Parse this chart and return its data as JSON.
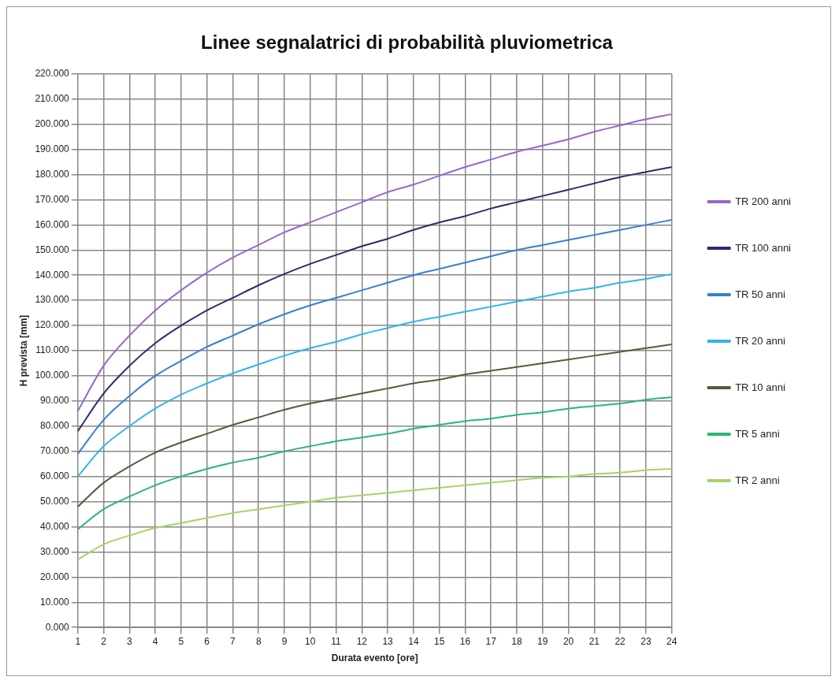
{
  "chart_data": {
    "type": "line",
    "title": "Linee segnalatrici di probabilità pluviometrica",
    "xlabel": "Durata evento [ore]",
    "ylabel": "H prevista [mm]",
    "x": [
      1,
      2,
      3,
      4,
      5,
      6,
      7,
      8,
      9,
      10,
      11,
      12,
      13,
      14,
      15,
      16,
      17,
      18,
      19,
      20,
      21,
      22,
      23,
      24
    ],
    "xlim": [
      1,
      24
    ],
    "xticks": [
      1,
      2,
      3,
      4,
      5,
      6,
      7,
      8,
      9,
      10,
      11,
      12,
      13,
      14,
      15,
      16,
      17,
      18,
      19,
      20,
      21,
      22,
      23,
      24
    ],
    "ylim": [
      0,
      220
    ],
    "yticks": [
      {
        "value": 0,
        "label": "0.000"
      },
      {
        "value": 10,
        "label": "10.000"
      },
      {
        "value": 20,
        "label": "20.000"
      },
      {
        "value": 30,
        "label": "30.000"
      },
      {
        "value": 40,
        "label": "40.000"
      },
      {
        "value": 50,
        "label": "50.000"
      },
      {
        "value": 60,
        "label": "60.000"
      },
      {
        "value": 70,
        "label": "70.000"
      },
      {
        "value": 80,
        "label": "80.000"
      },
      {
        "value": 90,
        "label": "90.000"
      },
      {
        "value": 100,
        "label": "100.000"
      },
      {
        "value": 110,
        "label": "110.000"
      },
      {
        "value": 120,
        "label": "120.000"
      },
      {
        "value": 130,
        "label": "130.000"
      },
      {
        "value": 140,
        "label": "140.000"
      },
      {
        "value": 150,
        "label": "150.000"
      },
      {
        "value": 160,
        "label": "160.000"
      },
      {
        "value": 170,
        "label": "170.000"
      },
      {
        "value": 180,
        "label": "180.000"
      },
      {
        "value": 190,
        "label": "190.000"
      },
      {
        "value": 200,
        "label": "200.000"
      },
      {
        "value": 210,
        "label": "210.000"
      },
      {
        "value": 220,
        "label": "220.000"
      }
    ],
    "grid": true,
    "legend": "right",
    "marker": "none",
    "line_style": "solid",
    "series": [
      {
        "name": "TR 200 anni",
        "color": "#9966cc",
        "values": [
          86,
          104,
          116,
          126,
          134,
          141,
          147,
          152,
          157,
          161,
          165,
          169,
          173,
          176,
          179.5,
          183,
          186,
          189,
          191.5,
          194,
          197,
          199.5,
          202,
          204
        ]
      },
      {
        "name": "TR 100 anni",
        "color": "#2e2a6e",
        "values": [
          78,
          93,
          104,
          113,
          120,
          126,
          131,
          136,
          140.5,
          144.5,
          148,
          151.5,
          154.5,
          158,
          161,
          163.5,
          166.5,
          169,
          171.5,
          174,
          176.5,
          179,
          181,
          183
        ]
      },
      {
        "name": "TR 50 anni",
        "color": "#3a7fd0",
        "values": [
          69,
          82.5,
          92,
          100,
          106,
          111.5,
          116,
          120.5,
          124.5,
          128,
          131,
          134,
          137,
          140,
          142.5,
          145,
          147.5,
          150,
          152,
          154,
          156,
          158,
          160,
          162
        ]
      },
      {
        "name": "TR 20 anni",
        "color": "#33b5ea",
        "values": [
          60,
          72,
          80,
          87,
          92.5,
          97,
          101,
          104.5,
          108,
          111,
          113.5,
          116.5,
          119,
          121.5,
          123.5,
          125.5,
          127.5,
          129.5,
          131.5,
          133.5,
          135,
          137,
          138.5,
          140.5
        ]
      },
      {
        "name": "TR 10 anni",
        "color": "#575b3a",
        "values": [
          48,
          57.5,
          64,
          69.5,
          73.5,
          77,
          80.5,
          83.5,
          86.5,
          89,
          91,
          93,
          95,
          97,
          98.5,
          100.5,
          102,
          103.5,
          105,
          106.5,
          108,
          109.5,
          111,
          112.5
        ]
      },
      {
        "name": "TR 5 anni",
        "color": "#2bb673",
        "values": [
          39,
          47,
          52,
          56.5,
          60,
          63,
          65.5,
          67.5,
          70,
          72,
          74,
          75.5,
          77,
          79,
          80.5,
          82,
          83,
          84.5,
          85.5,
          87,
          88,
          89,
          90.5,
          91.5
        ]
      },
      {
        "name": "TR 2 anni",
        "color": "#a6d36a",
        "values": [
          27,
          33,
          36.5,
          39.5,
          41.5,
          43.5,
          45.5,
          47,
          48.5,
          50,
          51.5,
          52.5,
          53.5,
          54.5,
          55.5,
          56.5,
          57.5,
          58.5,
          59.5,
          60,
          61,
          61.5,
          62.5,
          63
        ]
      }
    ]
  }
}
